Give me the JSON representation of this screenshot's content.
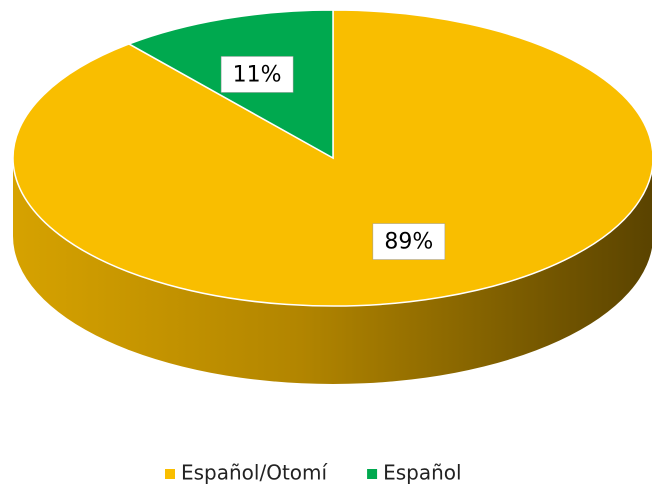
{
  "chart_data": {
    "type": "pie",
    "series": [
      {
        "name": "Español/Otomí",
        "color": "#f9be00"
      },
      {
        "name": "Español",
        "color": "#00a94f"
      }
    ],
    "values": [
      89,
      11
    ],
    "value_labels": [
      "89%",
      "11%"
    ]
  }
}
